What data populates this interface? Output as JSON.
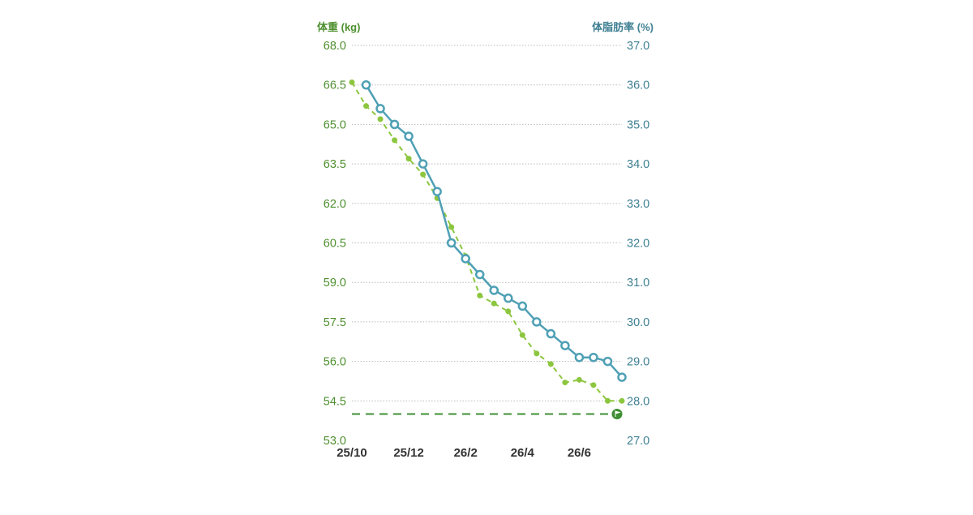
{
  "chart_data": {
    "type": "line",
    "left_axis_label": "体重 (kg)",
    "right_axis_label": "体脂肪率 (%)",
    "left_ylim": [
      53.0,
      68.0
    ],
    "right_ylim": [
      27.0,
      37.0
    ],
    "left_ticks": [
      "68.0",
      "66.5",
      "65.0",
      "63.5",
      "62.0",
      "60.5",
      "59.0",
      "57.5",
      "56.0",
      "54.5",
      "53.0"
    ],
    "right_ticks": [
      "37.0",
      "36.0",
      "35.0",
      "34.0",
      "33.0",
      "32.0",
      "31.0",
      "30.0",
      "29.0",
      "28.0",
      "27.0"
    ],
    "x_ticks": [
      "25/10",
      "25/12",
      "26/2",
      "26/4",
      "26/6"
    ],
    "x_tick_positions": [
      0,
      2,
      4,
      6,
      8
    ],
    "x_range": [
      0,
      9.5
    ],
    "grid": true,
    "goal_weight": 54.0,
    "colors": {
      "weight": "#8cc63f",
      "body_fat": "#4fa0b5",
      "goal": "#3f8f34",
      "left_axis_text": "#4e8f2f",
      "right_axis_text": "#3e7f92",
      "x_axis_text": "#333333",
      "grid": "#bbbbbb"
    },
    "series": [
      {
        "key": "weight",
        "axis": "left",
        "style": "dashed-dots",
        "x": [
          0.0,
          0.5,
          1.0,
          1.5,
          2.0,
          2.5,
          3.0,
          3.5,
          4.0,
          4.5,
          5.0,
          5.5,
          6.0,
          6.5,
          7.0,
          7.5,
          8.0,
          8.5,
          9.0,
          9.5
        ],
        "values": [
          66.6,
          65.7,
          65.2,
          64.4,
          63.7,
          63.1,
          62.2,
          61.1,
          60.0,
          58.5,
          58.2,
          57.9,
          57.0,
          56.3,
          55.9,
          55.2,
          55.3,
          55.1,
          54.5,
          54.5
        ]
      },
      {
        "key": "body_fat",
        "axis": "right",
        "style": "solid-rings",
        "x": [
          0.5,
          1.0,
          1.5,
          2.0,
          2.5,
          3.0,
          3.5,
          4.0,
          4.5,
          5.0,
          5.5,
          6.0,
          6.5,
          7.0,
          7.5,
          8.0,
          8.5,
          9.0,
          9.5
        ],
        "values": [
          36.0,
          35.4,
          35.0,
          34.7,
          34.0,
          33.3,
          32.0,
          31.6,
          31.2,
          30.8,
          30.6,
          30.4,
          30.0,
          29.7,
          29.4,
          29.1,
          29.1,
          29.0,
          28.6
        ]
      }
    ]
  }
}
